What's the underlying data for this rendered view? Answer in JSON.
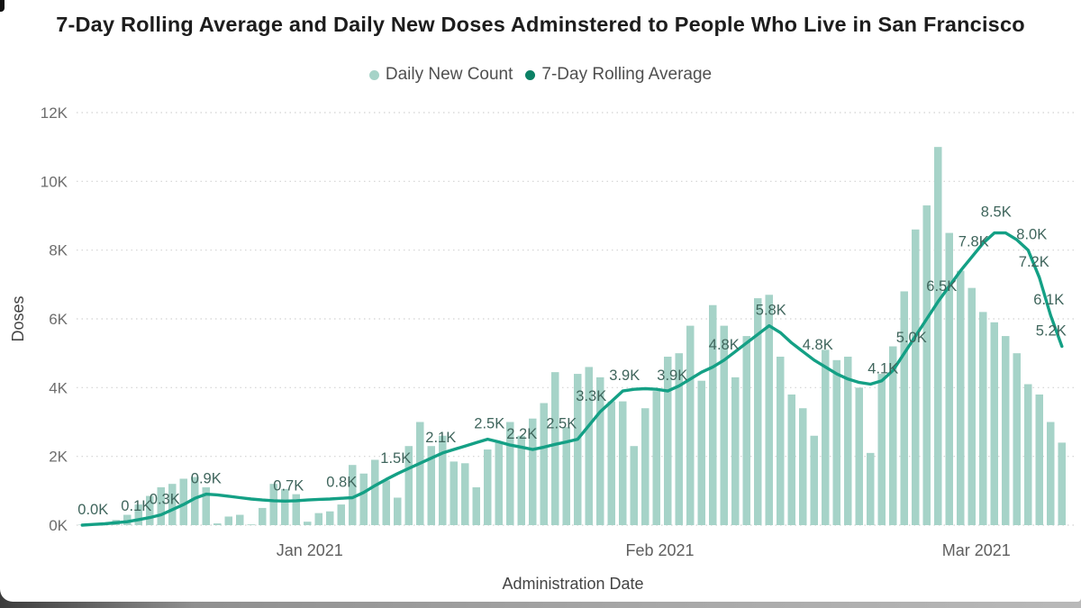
{
  "title": {
    "text": "7-Day Rolling Average and Daily New Doses Adminstered to People Who Live in San Francisco"
  },
  "legend": {
    "items": [
      {
        "label": "Daily New Count",
        "color": "#a6d3c8"
      },
      {
        "label": "7-Day Rolling Average",
        "color": "#0c8165"
      }
    ]
  },
  "colors": {
    "bar": "#a6d3c8",
    "line": "#14a085",
    "grid": "#d2d2d2",
    "point_label": "#3f655c",
    "background": "#ffffff",
    "bottom_bar": "#9b9b9b"
  },
  "chart_data": {
    "type": "combo-bar-line",
    "title": "7-Day Rolling Average and Daily New Doses Adminstered to People Who Live in San Francisco",
    "xlabel": "Administration Date",
    "ylabel": "Doses",
    "ylim_doses": [
      0,
      12000
    ],
    "grid": "dotted-horizontal",
    "legend_position": "top-center",
    "y_ticks": [
      "0K",
      "2K",
      "4K",
      "6K",
      "8K",
      "10K",
      "12K"
    ],
    "x_month_ticks": [
      {
        "label": "Jan 2021",
        "day": 20.2
      },
      {
        "label": "Feb 2021",
        "day": 51.3
      },
      {
        "label": "Mar 2021",
        "day": 79.4
      }
    ],
    "units": "thousands of doses (K)",
    "series": [
      {
        "name": "Daily New Count",
        "kind": "bar",
        "values_k": [
          0.01,
          0.02,
          0.06,
          0.15,
          0.3,
          0.6,
          0.85,
          1.1,
          1.2,
          1.35,
          1.4,
          1.1,
          0.05,
          0.25,
          0.3,
          0.02,
          0.5,
          1.2,
          1.05,
          0.9,
          0.1,
          0.35,
          0.4,
          0.6,
          1.75,
          1.5,
          1.9,
          1.3,
          0.8,
          2.3,
          3.0,
          2.3,
          2.6,
          1.85,
          1.8,
          1.1,
          2.2,
          2.4,
          3.0,
          2.6,
          3.1,
          3.55,
          4.45,
          2.85,
          4.4,
          4.6,
          4.3,
          3.6,
          3.6,
          2.3,
          3.4,
          3.9,
          4.9,
          5.0,
          5.8,
          4.2,
          6.4,
          5.8,
          4.3,
          5.5,
          6.6,
          6.7,
          4.9,
          3.8,
          3.4,
          2.6,
          5.1,
          4.8,
          4.9,
          4.0,
          2.1,
          4.4,
          5.2,
          6.8,
          8.6,
          9.3,
          11.0,
          8.5,
          7.4,
          6.9,
          6.2,
          5.9,
          5.5,
          5.0,
          4.1,
          3.8,
          3.0,
          2.4
        ]
      },
      {
        "name": "7-Day Rolling Average",
        "kind": "line",
        "values_k": [
          0.0,
          0.02,
          0.04,
          0.07,
          0.1,
          0.16,
          0.22,
          0.3,
          0.45,
          0.6,
          0.78,
          0.9,
          0.88,
          0.84,
          0.8,
          0.76,
          0.73,
          0.71,
          0.7,
          0.71,
          0.73,
          0.75,
          0.76,
          0.78,
          0.8,
          0.95,
          1.15,
          1.33,
          1.5,
          1.65,
          1.8,
          1.95,
          2.1,
          2.2,
          2.3,
          2.4,
          2.5,
          2.42,
          2.33,
          2.27,
          2.2,
          2.27,
          2.35,
          2.42,
          2.5,
          2.9,
          3.3,
          3.6,
          3.9,
          3.95,
          3.97,
          3.95,
          3.9,
          4.05,
          4.25,
          4.45,
          4.6,
          4.8,
          5.05,
          5.3,
          5.55,
          5.8,
          5.6,
          5.3,
          5.05,
          4.8,
          4.6,
          4.4,
          4.25,
          4.15,
          4.1,
          4.2,
          4.5,
          5.0,
          5.5,
          6.0,
          6.5,
          6.95,
          7.4,
          7.8,
          8.2,
          8.5,
          8.5,
          8.3,
          8.0,
          7.2,
          6.1,
          5.2
        ]
      }
    ],
    "line_point_labels": [
      {
        "day": 0,
        "text": "0.0K",
        "dx": 12
      },
      {
        "day": 4,
        "text": "0.1K",
        "dx": 10
      },
      {
        "day": 7,
        "text": "0.3K",
        "dx": 4
      },
      {
        "day": 11,
        "text": "0.9K",
        "dx": 0
      },
      {
        "day": 18,
        "text": "0.7K",
        "dx": 4
      },
      {
        "day": 24,
        "text": "0.8K",
        "dx": -12
      },
      {
        "day": 28,
        "text": "1.5K",
        "dx": -2
      },
      {
        "day": 32,
        "text": "2.1K",
        "dx": -2
      },
      {
        "day": 36,
        "text": "2.5K",
        "dx": 2
      },
      {
        "day": 40,
        "text": "2.2K",
        "dx": -12
      },
      {
        "day": 44,
        "text": "2.5K",
        "dx": -18
      },
      {
        "day": 46,
        "text": "3.3K",
        "dx": -10
      },
      {
        "day": 48,
        "text": "3.9K",
        "dx": 2
      },
      {
        "day": 52,
        "text": "3.9K",
        "dx": 5
      },
      {
        "day": 57,
        "text": "4.8K",
        "dx": 0
      },
      {
        "day": 61,
        "text": "5.8K",
        "dx": 2
      },
      {
        "day": 65,
        "text": "4.8K",
        "dx": 4
      },
      {
        "day": 70,
        "text": "4.1K",
        "dx": 14
      },
      {
        "day": 73,
        "text": "5.0K",
        "dx": 8
      },
      {
        "day": 76,
        "text": "6.5K",
        "dx": 4
      },
      {
        "day": 79,
        "text": "7.8K",
        "dx": 2
      },
      {
        "day": 81,
        "text": "8.5K",
        "dx": 2,
        "dy": -6
      },
      {
        "day": 84,
        "text": "8.0K",
        "dx": 4
      },
      {
        "day": 85,
        "text": "7.2K",
        "dx": -6
      },
      {
        "day": 86,
        "text": "6.1K",
        "dx": -2
      },
      {
        "day": 87,
        "text": "5.2K",
        "dx": -12
      }
    ]
  }
}
